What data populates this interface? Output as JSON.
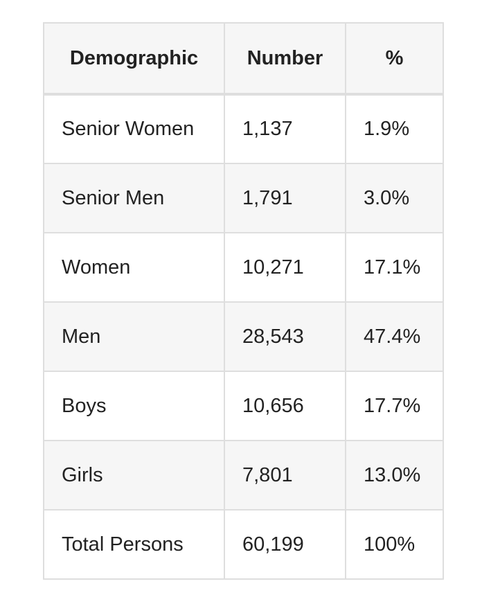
{
  "table": {
    "columns": [
      "Demographic",
      "Number",
      "%"
    ],
    "rows": [
      [
        "Senior Women",
        "1,137",
        "1.9%"
      ],
      [
        "Senior Men",
        "1,791",
        "3.0%"
      ],
      [
        "Women",
        "10,271",
        "17.1%"
      ],
      [
        "Men",
        "28,543",
        "47.4%"
      ],
      [
        "Boys",
        "10,656",
        "17.7%"
      ],
      [
        "Girls",
        "7,801",
        "13.0%"
      ],
      [
        "Total Persons",
        "60,199",
        "100%"
      ]
    ]
  }
}
